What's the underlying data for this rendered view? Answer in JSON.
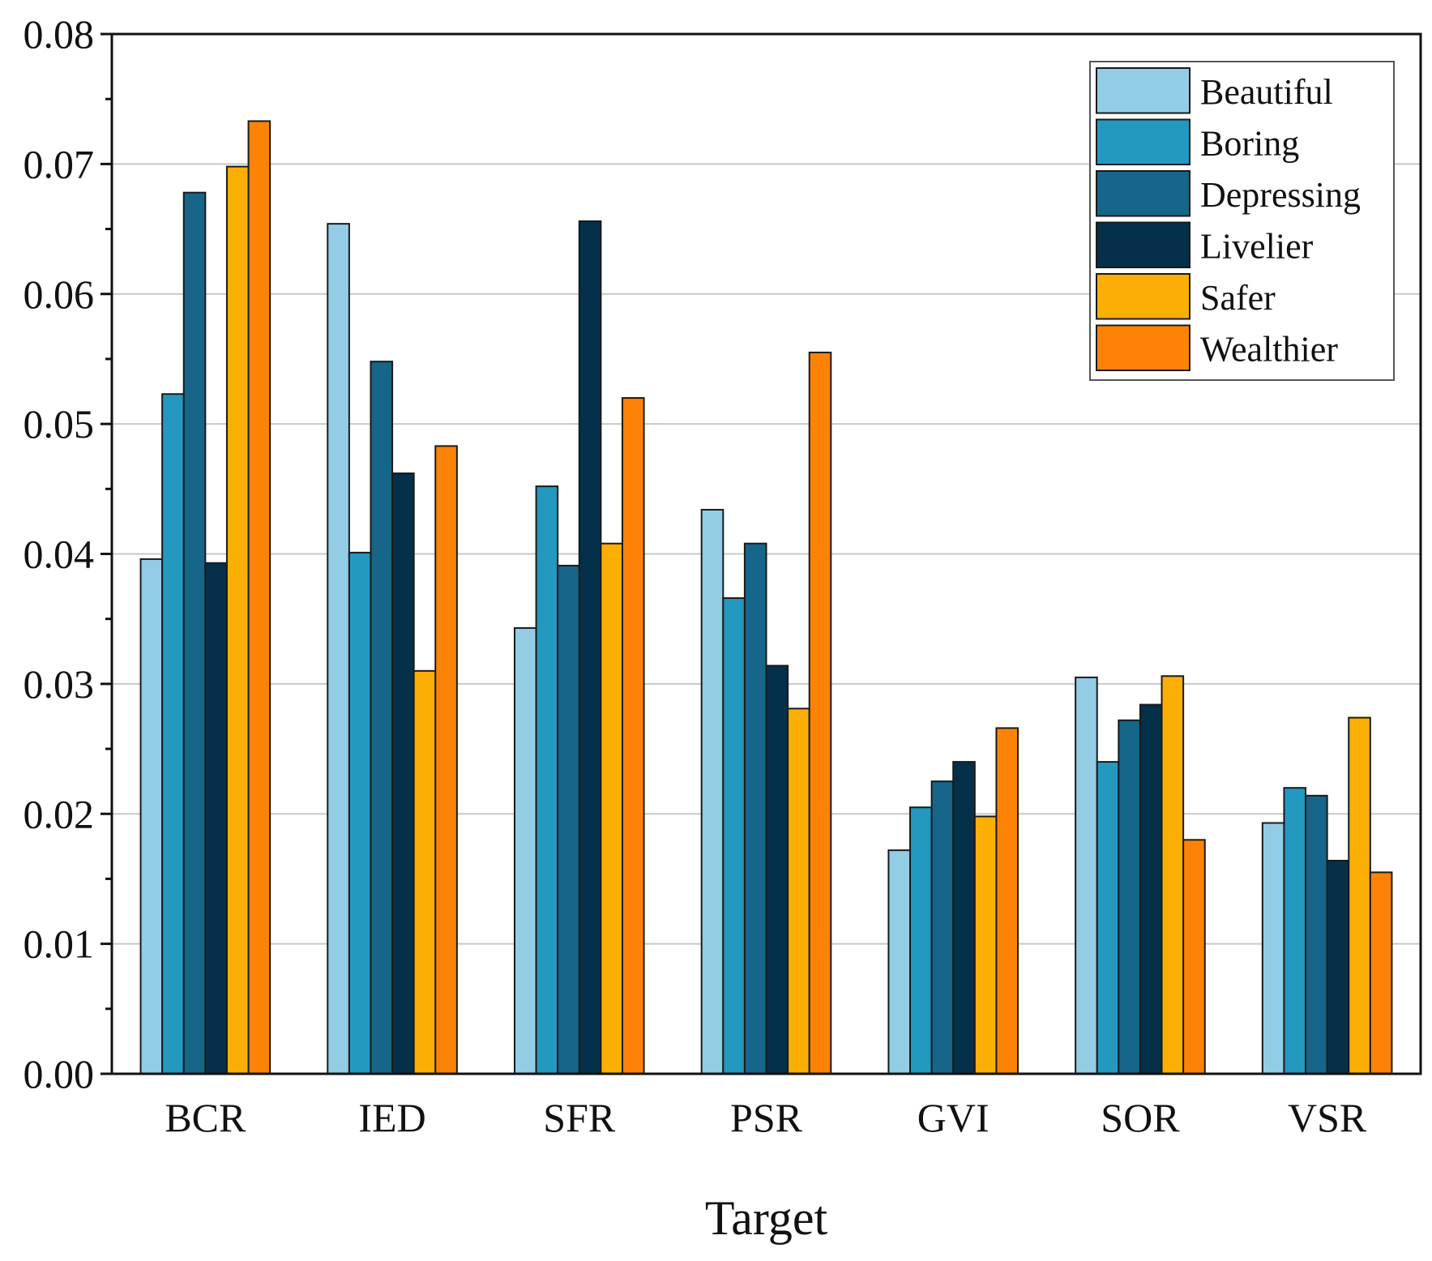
{
  "chart_data": {
    "type": "bar",
    "title": "",
    "xlabel": "Target",
    "ylabel": "",
    "ylim": [
      0,
      0.08
    ],
    "yticks": [
      "0.00",
      "0.01",
      "0.02",
      "0.03",
      "0.04",
      "0.05",
      "0.06",
      "0.07",
      "0.08"
    ],
    "grid": true,
    "legend_position": "top-right",
    "categories": [
      "BCR",
      "IED",
      "SFR",
      "PSR",
      "GVI",
      "SOR",
      "VSR"
    ],
    "series": [
      {
        "name": "Beautiful",
        "color": "#93cde5",
        "values": [
          0.0396,
          0.0654,
          0.0343,
          0.0434,
          0.0172,
          0.0305,
          0.0193
        ]
      },
      {
        "name": "Boring",
        "color": "#2399c0",
        "values": [
          0.0523,
          0.0401,
          0.0452,
          0.0366,
          0.0205,
          0.024,
          0.022
        ]
      },
      {
        "name": "Depressing",
        "color": "#156688",
        "values": [
          0.0678,
          0.0548,
          0.0391,
          0.0408,
          0.0225,
          0.0272,
          0.0214
        ]
      },
      {
        "name": "Livelier",
        "color": "#04304a",
        "values": [
          0.0393,
          0.0462,
          0.0656,
          0.0314,
          0.024,
          0.0284,
          0.0164
        ]
      },
      {
        "name": "Safer",
        "color": "#fbaf04",
        "values": [
          0.0698,
          0.031,
          0.0408,
          0.0281,
          0.0198,
          0.0306,
          0.0274
        ]
      },
      {
        "name": "Wealthier",
        "color": "#fd8306",
        "values": [
          0.0733,
          0.0483,
          0.052,
          0.0555,
          0.0266,
          0.018,
          0.0155
        ]
      }
    ]
  }
}
